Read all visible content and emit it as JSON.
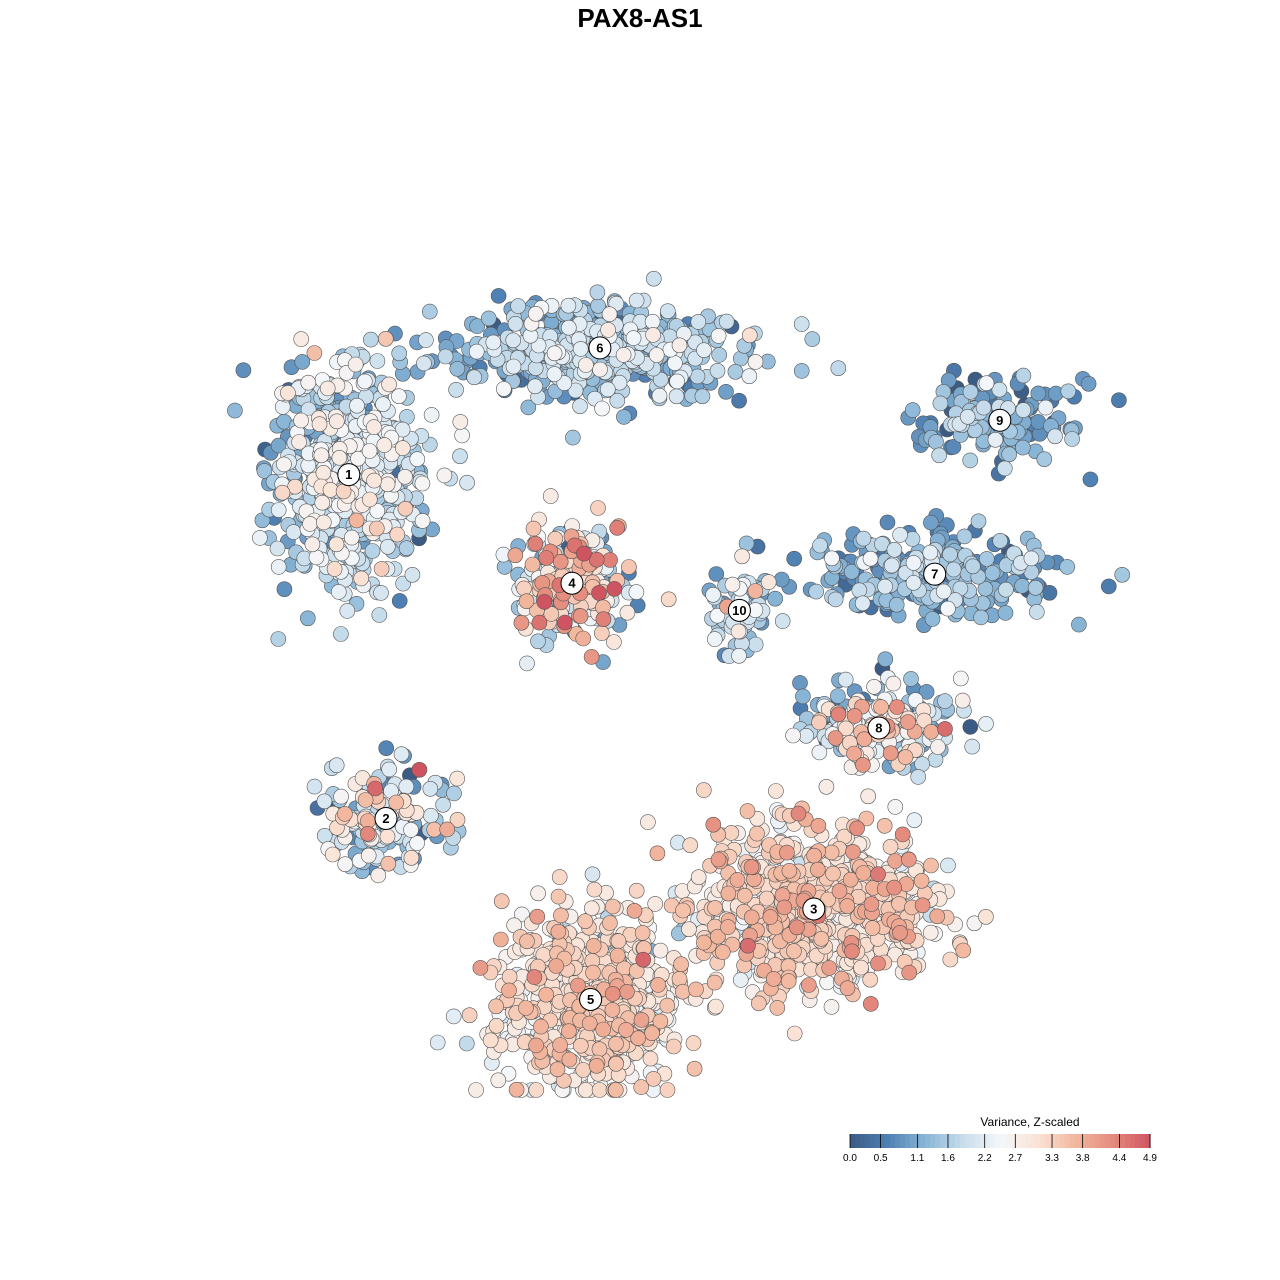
{
  "chart_data": {
    "type": "scatter",
    "title": "PAX8-AS1",
    "xlabel": "",
    "ylabel": "",
    "grid": false,
    "colorbar": {
      "title": "Variance, Z-scaled",
      "position": "bottom-right",
      "range": [
        0.0,
        4.9
      ],
      "ticks": [
        "0.0",
        "0.5",
        "1.1",
        "1.6",
        "2.2",
        "2.7",
        "3.3",
        "3.8",
        "4.4",
        "4.9"
      ],
      "palette": [
        "#3b5b85",
        "#4f80b3",
        "#88b5d6",
        "#c6dceb",
        "#f4f7fa",
        "#fae3d6",
        "#f2b79e",
        "#e48b7d",
        "#cf5462"
      ]
    },
    "clusters": [
      {
        "label": "1",
        "x": 0.16,
        "y": 0.68,
        "sx": 0.07,
        "sy": 0.11,
        "n": 620,
        "mean": 1.8,
        "sd": 0.6
      },
      {
        "label": "6",
        "x": 0.43,
        "y": 0.82,
        "sx": 0.14,
        "sy": 0.045,
        "n": 560,
        "mean": 1.4,
        "sd": 0.6
      },
      {
        "label": "9",
        "x": 0.86,
        "y": 0.74,
        "sx": 0.07,
        "sy": 0.04,
        "n": 150,
        "mean": 1.0,
        "sd": 0.6
      },
      {
        "label": "7",
        "x": 0.79,
        "y": 0.57,
        "sx": 0.12,
        "sy": 0.04,
        "n": 300,
        "mean": 1.1,
        "sd": 0.6
      },
      {
        "label": "4",
        "x": 0.4,
        "y": 0.56,
        "sx": 0.05,
        "sy": 0.06,
        "n": 240,
        "mean": 2.4,
        "sd": 1.2
      },
      {
        "label": "10",
        "x": 0.58,
        "y": 0.53,
        "sx": 0.03,
        "sy": 0.05,
        "n": 80,
        "mean": 1.7,
        "sd": 0.7
      },
      {
        "label": "8",
        "x": 0.73,
        "y": 0.4,
        "sx": 0.07,
        "sy": 0.035,
        "n": 260,
        "mean": 1.9,
        "sd": 1.1
      },
      {
        "label": "2",
        "x": 0.2,
        "y": 0.3,
        "sx": 0.06,
        "sy": 0.05,
        "n": 180,
        "mean": 2.0,
        "sd": 1.1
      },
      {
        "label": "3",
        "x": 0.66,
        "y": 0.2,
        "sx": 0.12,
        "sy": 0.08,
        "n": 820,
        "mean": 3.0,
        "sd": 0.55
      },
      {
        "label": "5",
        "x": 0.42,
        "y": 0.1,
        "sx": 0.09,
        "sy": 0.09,
        "n": 700,
        "mean": 2.9,
        "sd": 0.5
      }
    ]
  }
}
